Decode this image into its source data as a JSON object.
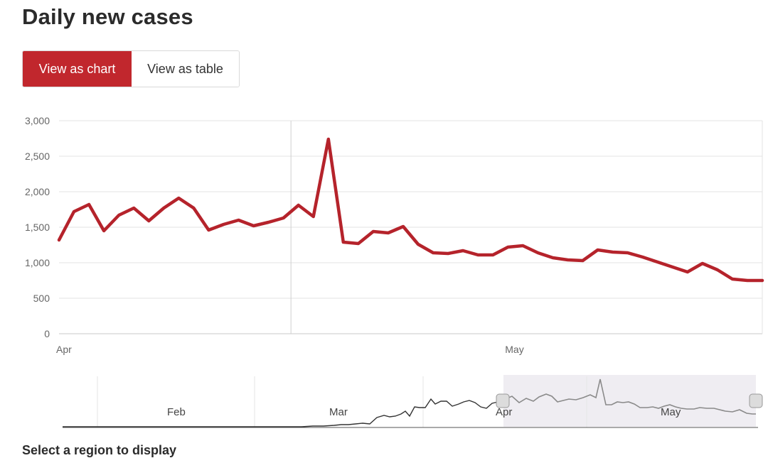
{
  "header": {
    "title": "Daily new cases"
  },
  "toggle": {
    "chart_label": "View as chart",
    "table_label": "View as table"
  },
  "footer": {
    "text": "Select a region to display"
  },
  "navigator": {
    "month_labels": [
      "Feb",
      "Mar",
      "Apr",
      "May"
    ]
  },
  "colors": {
    "accent": "#c1272d",
    "line": "#b5232b"
  },
  "chart_data": {
    "type": "line",
    "title": "Daily new cases",
    "ylim": [
      0,
      3000
    ],
    "yticks": [
      "3,000",
      "2,500",
      "2,000",
      "1,500",
      "1,000",
      "500",
      "0"
    ],
    "ytick_values": [
      3000,
      2500,
      2000,
      1500,
      1000,
      500,
      0
    ],
    "x_labels": [
      "Apr",
      "May"
    ],
    "x_label_index": [
      0,
      30
    ],
    "grid": true,
    "series": [
      {
        "values": [
          1320,
          1720,
          1820,
          1450,
          1670,
          1770,
          1590,
          1770,
          1910,
          1770,
          1460,
          1540,
          1600,
          1520,
          1570,
          1630,
          1810,
          1650,
          2740,
          1290,
          1270,
          1440,
          1420,
          1510,
          1260,
          1140,
          1130,
          1170,
          1110,
          1110,
          1220,
          1240,
          1140,
          1070,
          1040,
          1030,
          1180,
          1150,
          1140,
          1080,
          1010,
          940,
          870,
          990,
          900,
          770,
          750,
          750
        ]
      }
    ]
  }
}
